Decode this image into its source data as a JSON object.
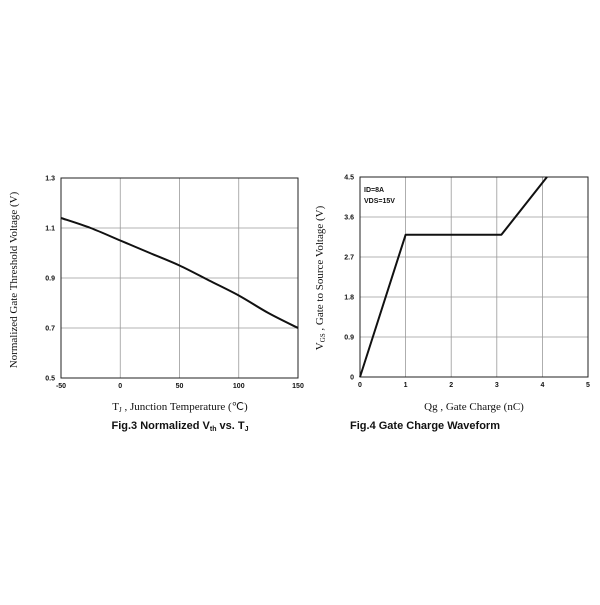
{
  "chart_data": [
    {
      "type": "line",
      "ylabel": "Normalized Gate Threshold Voltage (V)",
      "xlabel_main": "T",
      "xlabel_sub": "J",
      "xlabel_rest": " , Junction Temperature (℃)",
      "caption_main": "Fig.3  Normalized V",
      "caption_sub": "th",
      "caption_rest": " vs. T",
      "caption_sub2": "J",
      "xlim": [
        -50,
        150
      ],
      "ylim": [
        0.5,
        1.3
      ],
      "x_ticks": [
        "-50",
        "0",
        "50",
        "100",
        "150"
      ],
      "x_tick_values": [
        -50,
        0,
        50,
        100,
        150
      ],
      "y_ticks": [
        "0.5",
        "0.7",
        "0.9",
        "1.1",
        "1.3"
      ],
      "y_tick_values": [
        0.5,
        0.7,
        0.9,
        1.1,
        1.3
      ],
      "grid": true,
      "series": [
        {
          "x": [
            -50,
            -25,
            0,
            25,
            50,
            75,
            100,
            125,
            150
          ],
          "y": [
            1.14,
            1.1,
            1.05,
            1.0,
            0.95,
            0.89,
            0.83,
            0.76,
            0.7
          ]
        }
      ]
    },
    {
      "type": "line",
      "ylabel_main": "V",
      "ylabel_sub": "GS",
      "ylabel_rest": " , Gate to Source Voltage (V)",
      "xlabel": "Qg , Gate Charge (nC)",
      "caption": "Fig.4  Gate Charge Waveform",
      "annotations": [
        "ID=8A",
        "VDS=15V"
      ],
      "xlim": [
        0,
        5
      ],
      "ylim": [
        0,
        4.5
      ],
      "x_ticks": [
        "0",
        "1",
        "2",
        "3",
        "4",
        "5"
      ],
      "x_tick_values": [
        0,
        1,
        2,
        3,
        4,
        5
      ],
      "y_ticks": [
        "0",
        "0.9",
        "1.8",
        "2.7",
        "3.6",
        "4.5"
      ],
      "y_tick_values": [
        0,
        0.9,
        1.8,
        2.7,
        3.6,
        4.5
      ],
      "grid": true,
      "series": [
        {
          "x": [
            0,
            1.0,
            3.1,
            4.1
          ],
          "y": [
            0,
            3.2,
            3.2,
            4.5
          ]
        }
      ]
    }
  ]
}
